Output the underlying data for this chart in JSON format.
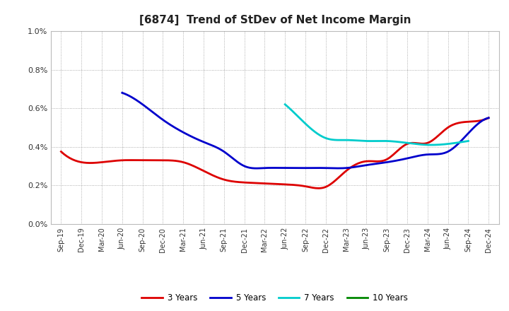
{
  "title": "[6874]  Trend of StDev of Net Income Margin",
  "title_fontsize": 11,
  "background_color": "#ffffff",
  "grid_color": "#999999",
  "xlim_labels": [
    "Sep-19",
    "Dec-19",
    "Mar-20",
    "Jun-20",
    "Sep-20",
    "Dec-20",
    "Mar-21",
    "Jun-21",
    "Sep-21",
    "Dec-21",
    "Mar-22",
    "Jun-22",
    "Sep-22",
    "Dec-22",
    "Mar-23",
    "Jun-23",
    "Sep-23",
    "Dec-23",
    "Mar-24",
    "Jun-24",
    "Sep-24",
    "Dec-24"
  ],
  "ylim": [
    0.0,
    0.01
  ],
  "yticks": [
    0.0,
    0.002,
    0.004,
    0.006,
    0.008,
    0.01
  ],
  "ytick_labels": [
    "0.0%",
    "0.2%",
    "0.4%",
    "0.6%",
    "0.8%",
    "1.0%"
  ],
  "series": {
    "3 Years": {
      "color": "#dd0000",
      "x_indices": [
        0,
        1,
        2,
        3,
        4,
        5,
        6,
        7,
        8,
        9,
        10,
        11,
        12,
        13,
        14,
        15,
        16,
        17,
        18,
        19,
        20,
        21
      ],
      "y": [
        0.00375,
        0.0032,
        0.0032,
        0.0033,
        0.0033,
        0.0033,
        0.0032,
        0.00275,
        0.0023,
        0.00215,
        0.0021,
        0.00205,
        0.00195,
        0.00192,
        0.00275,
        0.00325,
        0.00335,
        0.00415,
        0.0042,
        0.005,
        0.0053,
        0.0055
      ]
    },
    "5 Years": {
      "color": "#0000cc",
      "x_indices": [
        3,
        4,
        5,
        6,
        7,
        8,
        9,
        10,
        11,
        12,
        13,
        14,
        15,
        16,
        17,
        18,
        19,
        20,
        21
      ],
      "y": [
        0.0068,
        0.0062,
        0.0054,
        0.00475,
        0.00425,
        0.00375,
        0.003,
        0.0029,
        0.0029,
        0.0029,
        0.0029,
        0.0029,
        0.00305,
        0.0032,
        0.0034,
        0.0036,
        0.00375,
        0.0047,
        0.0055
      ]
    },
    "7 Years": {
      "color": "#00cccc",
      "x_indices": [
        11,
        12,
        13,
        14,
        15,
        16,
        17,
        18,
        19,
        20
      ],
      "y": [
        0.0062,
        0.0052,
        0.00445,
        0.00435,
        0.0043,
        0.0043,
        0.0042,
        0.0041,
        0.00415,
        0.0043
      ]
    },
    "10 Years": {
      "color": "#008800",
      "x_indices": [],
      "y": []
    }
  },
  "legend_labels": [
    "3 Years",
    "5 Years",
    "7 Years",
    "10 Years"
  ],
  "legend_colors": [
    "#dd0000",
    "#0000cc",
    "#00cccc",
    "#008800"
  ],
  "line_width": 2.0
}
